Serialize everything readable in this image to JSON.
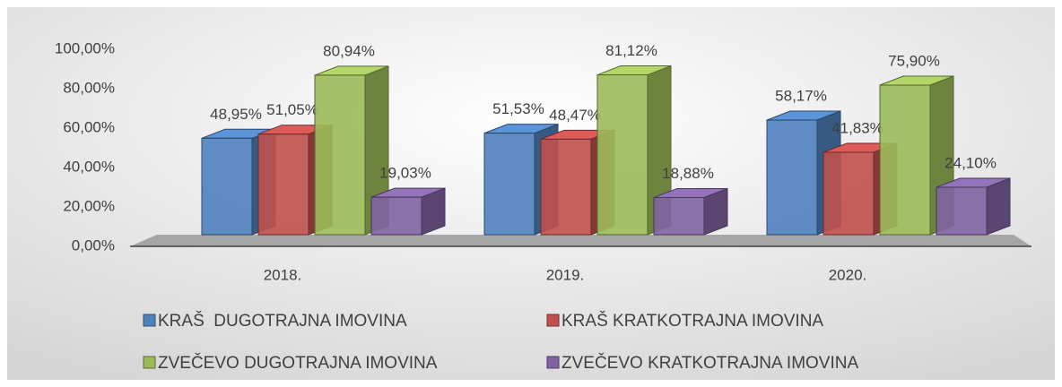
{
  "chart_data": {
    "type": "bar3d",
    "categories": [
      "2018.",
      "2019.",
      "2020."
    ],
    "series": [
      {
        "name": "KRAŠ  DUGOTRAJNA IMOVINA",
        "color": "#4f81bd",
        "values": [
          48.95,
          51.53,
          58.17
        ],
        "value_labels": [
          "48,95%",
          "51,53%",
          "58,17%"
        ]
      },
      {
        "name": "KRAŠ KRATKOTRAJNA IMOVINA",
        "color": "#c0504d",
        "values": [
          51.05,
          48.47,
          41.83
        ],
        "value_labels": [
          "51,05%",
          "48,47%",
          "41,83%"
        ]
      },
      {
        "name": "ZVEČEVO DUGOTRAJNA IMOVINA",
        "color": "#9bbb59",
        "values": [
          80.94,
          81.12,
          75.9
        ],
        "value_labels": [
          "80,94%",
          "81,12%",
          "75,90%"
        ]
      },
      {
        "name": "ZVEČEVO KRATKOTRAJNA IMOVINA",
        "color": "#8064a2",
        "values": [
          19.03,
          18.88,
          24.1
        ],
        "value_labels": [
          "19,03%",
          "18,88%",
          "24,10%"
        ]
      }
    ],
    "ylim": [
      0,
      100
    ],
    "yticks": [
      {
        "value": 0,
        "label": "0,00%"
      },
      {
        "value": 20,
        "label": "20,00%"
      },
      {
        "value": 40,
        "label": "40,00%"
      },
      {
        "value": 60,
        "label": "60,00%"
      },
      {
        "value": 80,
        "label": "80,00%"
      },
      {
        "value": 100,
        "label": "100,00%"
      }
    ],
    "legend": "bottom"
  }
}
